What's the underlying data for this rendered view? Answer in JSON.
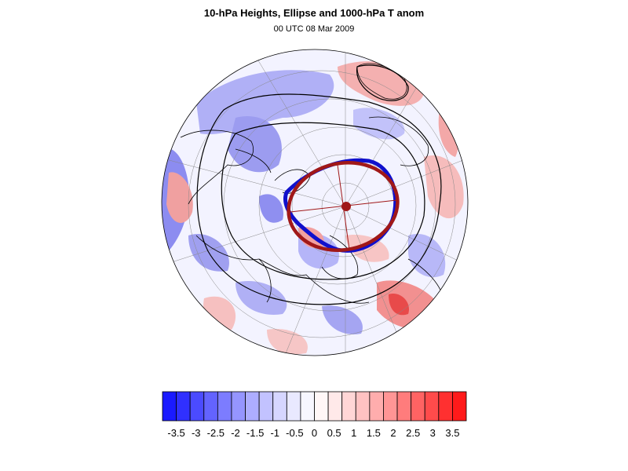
{
  "figure": {
    "title": "10-hPa Heights, Ellipse and 1000-hPa T anom",
    "subtitle": "00 UTC 08 Mar 2009"
  },
  "map": {
    "projection": "north-polar-stereographic",
    "field": "1000-hPa temperature anomaly",
    "contours": "10-hPa geopotential heights",
    "overlays": [
      "blue vortex edge contour",
      "dark-red fitted ellipse",
      "ellipse centroid marker"
    ]
  },
  "colorbar": {
    "colors": [
      "#1a1aff",
      "#3030ff",
      "#4b4bff",
      "#6363ff",
      "#7c7cff",
      "#9595ff",
      "#adadff",
      "#c2c2ff",
      "#d6d6ff",
      "#e9e9ff",
      "#f7f7ff",
      "#fff7f7",
      "#ffe9e9",
      "#ffd6d6",
      "#ffc2c2",
      "#ffadad",
      "#ff9595",
      "#ff7c7c",
      "#ff6363",
      "#ff4b4b",
      "#ff3030",
      "#ff1a1a"
    ],
    "tick_labels": [
      "-3.5",
      "-3",
      "-2.5",
      "-2",
      "-1.5",
      "-1",
      "-0.5",
      "0",
      "0.5",
      "1",
      "1.5",
      "2",
      "2.5",
      "3",
      "3.5"
    ]
  }
}
